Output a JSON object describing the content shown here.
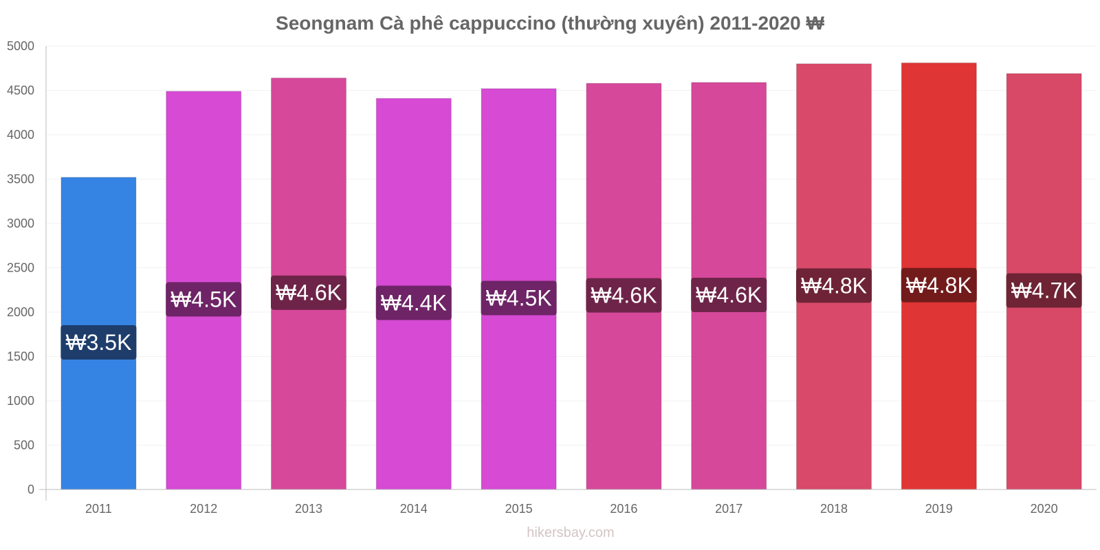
{
  "chart_data": {
    "type": "bar",
    "title": "Seongnam Cà phê cappuccino (thường xuyên) 2011-2020 ₩",
    "xlabel": "",
    "ylabel": "",
    "categories": [
      "2011",
      "2012",
      "2013",
      "2014",
      "2015",
      "2016",
      "2017",
      "2018",
      "2019",
      "2020"
    ],
    "values": [
      3520,
      4490,
      4640,
      4410,
      4520,
      4580,
      4590,
      4800,
      4810,
      4690
    ],
    "data_labels": [
      "₩3.5K",
      "₩4.5K",
      "₩4.6K",
      "₩4.4K",
      "₩4.5K",
      "₩4.6K",
      "₩4.6K",
      "₩4.8K",
      "₩4.8K",
      "₩4.7K"
    ],
    "bar_colors": [
      "#3584e4",
      "#d64ad4",
      "#d6489a",
      "#d64ad4",
      "#d64ad4",
      "#d6489a",
      "#d6489a",
      "#d8496a",
      "#e03535",
      "#d84968"
    ],
    "label_bg_colors": [
      "#1e3d6b",
      "#6e2466",
      "#6e2448",
      "#6e2466",
      "#6e2466",
      "#6e2448",
      "#6e2448",
      "#6e2436",
      "#731b1b",
      "#6e2434"
    ],
    "ylim": [
      0,
      5000
    ],
    "yticks": [
      0,
      500,
      1000,
      1500,
      2000,
      2500,
      3000,
      3500,
      4000,
      4500,
      5000
    ],
    "grid": true,
    "legend": "none"
  },
  "watermark": "hikersbay.com",
  "colors": {
    "axis": "#bbbbbb",
    "grid": "#f2f2f2",
    "text": "#666666"
  }
}
